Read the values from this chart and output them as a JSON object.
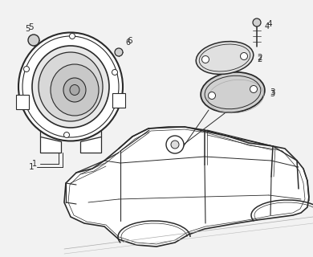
{
  "bg_color": "#f2f2f2",
  "line_color": "#2a2a2a",
  "fig_width": 3.9,
  "fig_height": 3.2,
  "dpi": 100
}
